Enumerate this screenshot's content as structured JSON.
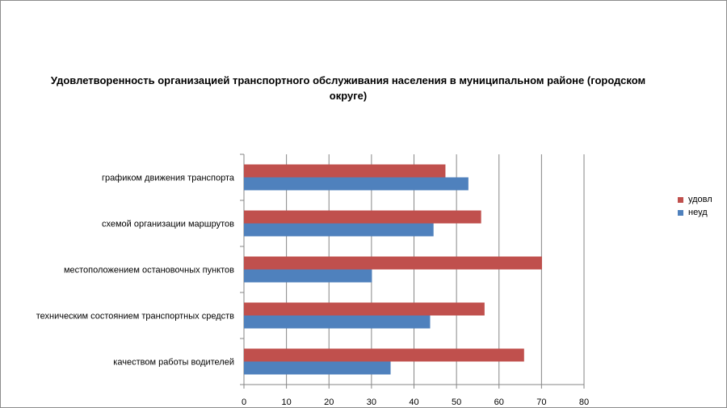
{
  "chart_data": {
    "type": "bar",
    "orientation": "horizontal",
    "title": "Удовлетворенность организацией транспортного обслуживания населения в муниципальном районе (городском округе)",
    "categories": [
      "графиком движения транспорта",
      "схемой организации маршрутов",
      "местоположением остановочных пунктов",
      "техническим состоянием транспортных средств",
      "качеством работы водителей"
    ],
    "series": [
      {
        "name": "удовл",
        "color": "#c0504d",
        "values": [
          47.4,
          55.8,
          70.1,
          56.6,
          65.9
        ]
      },
      {
        "name": "неуд",
        "color": "#4f81bd",
        "values": [
          52.8,
          44.6,
          30.1,
          43.8,
          34.5
        ]
      }
    ],
    "xlim": [
      0,
      80
    ],
    "xticks": [
      "0",
      "10",
      "20",
      "30",
      "40",
      "50",
      "60",
      "70",
      "80"
    ],
    "grid": true,
    "legend": "right"
  }
}
